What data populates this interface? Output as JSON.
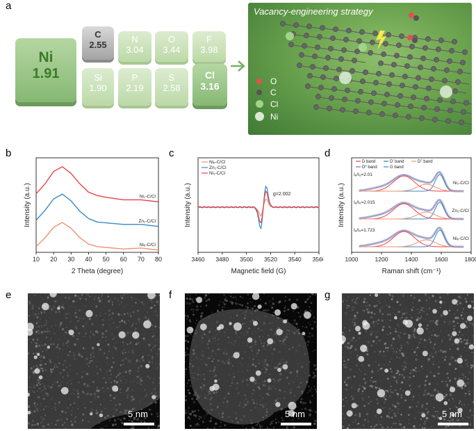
{
  "panels": {
    "a": "a",
    "b": "b",
    "c": "c",
    "d": "d",
    "e": "e",
    "f": "f",
    "g": "g"
  },
  "elements": [
    {
      "sym": "Ni",
      "val": "1.91"
    },
    {
      "sym": "C",
      "val": "2.55"
    },
    {
      "sym": "N",
      "val": "3.04"
    },
    {
      "sym": "O",
      "val": "3.44"
    },
    {
      "sym": "F",
      "val": "3.98"
    },
    {
      "sym": "Si",
      "val": "1.90"
    },
    {
      "sym": "P",
      "val": "2.19"
    },
    {
      "sym": "S",
      "val": "2.58"
    },
    {
      "sym": "Cl",
      "val": "3.16"
    }
  ],
  "scheme": {
    "title": "Vacancy-engineering strategy",
    "legend": [
      "O",
      "C",
      "Cl",
      "Ni"
    ]
  },
  "colors": {
    "red": "#e8414a",
    "blue": "#3a86c8",
    "orange": "#f0906e"
  },
  "chart_data": [
    {
      "type": "line",
      "panel": "b",
      "xlabel": "2 Theta (degree)",
      "ylabel": "Intensity (a.u.)",
      "xlim": [
        10,
        80
      ],
      "xticks": [
        "10",
        "20",
        "30",
        "40",
        "50",
        "60",
        "70",
        "80"
      ],
      "series": [
        {
          "name": "Ni1-C/Cl",
          "label": "Ni₁-C/Cl",
          "color": "#e8414a",
          "x": [
            10,
            15,
            20,
            25,
            30,
            35,
            40,
            45,
            50,
            60,
            70,
            80
          ],
          "y": [
            0.62,
            0.72,
            0.86,
            0.9,
            0.84,
            0.72,
            0.64,
            0.6,
            0.58,
            0.56,
            0.55,
            0.54
          ]
        },
        {
          "name": "Zn1-C/Cl",
          "label": "Zn₁-C/Cl",
          "color": "#3a86c8",
          "x": [
            10,
            15,
            20,
            25,
            30,
            35,
            40,
            45,
            50,
            60,
            70,
            80
          ],
          "y": [
            0.34,
            0.44,
            0.57,
            0.61,
            0.55,
            0.43,
            0.36,
            0.32,
            0.31,
            0.3,
            0.29,
            0.28
          ]
        },
        {
          "name": "Nif-C/Cl",
          "label": "Niₑ-C/Cl",
          "color": "#f0906e",
          "x": [
            10,
            15,
            20,
            25,
            30,
            35,
            40,
            45,
            50,
            60,
            70,
            80
          ],
          "y": [
            0.06,
            0.15,
            0.27,
            0.31,
            0.26,
            0.15,
            0.09,
            0.06,
            0.05,
            0.04,
            0.04,
            0.03
          ]
        }
      ]
    },
    {
      "type": "line",
      "panel": "c",
      "xlabel": "Magnetic field (G)",
      "ylabel": "Intensity (a.u.)",
      "xlim": [
        3460,
        3560
      ],
      "xticks": [
        "3460",
        "3480",
        "3500",
        "3520",
        "3540",
        "3560"
      ],
      "annotation": "g=2.002",
      "legend": [
        "Niₑ-C/Cl",
        "Zn₁-C/Cl",
        "Ni₁-C/Cl"
      ],
      "series": [
        {
          "name": "Nif-C/Cl",
          "color": "#f0906e",
          "amp": 0.4
        },
        {
          "name": "Zn1-C/Cl",
          "color": "#3a86c8",
          "amp": 1.0
        },
        {
          "name": "Ni1-C/Cl",
          "color": "#e8414a",
          "amp": 0.75
        }
      ]
    },
    {
      "type": "line",
      "panel": "d",
      "xlabel": "Raman shift (cm⁻¹)",
      "ylabel": "Intensity (a.u.)",
      "xlim": [
        1000,
        1800
      ],
      "xticks": [
        "1000",
        "1200",
        "1400",
        "1600",
        "1800"
      ],
      "legend": [
        "D band",
        "D' band",
        "D'' band",
        "D* band",
        "G band"
      ],
      "ratios": [
        "Iₑ/I₆=2.01",
        "Iₑ/I₆=2.015",
        "Iₑ/I₆=1.723"
      ],
      "curves": [
        "Ni₁-C/Cl",
        "Zn₁-C/Cl",
        "Niₑ-C/Cl"
      ],
      "series": [
        {
          "name": "Ni1-C/Cl",
          "D": 1350,
          "G": 1590,
          "ratio": 2.01
        },
        {
          "name": "Zn1-C/Cl",
          "D": 1350,
          "G": 1590,
          "ratio": 2.015
        },
        {
          "name": "Nif-C/Cl",
          "D": 1350,
          "G": 1590,
          "ratio": 1.723
        }
      ]
    }
  ],
  "stem": [
    {
      "scale": "5 nm"
    },
    {
      "scale": "5 nm"
    },
    {
      "scale": "5 nm"
    }
  ]
}
